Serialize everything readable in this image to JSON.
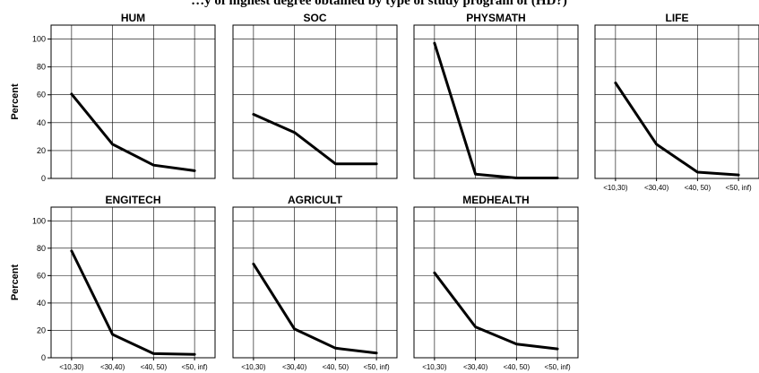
{
  "title": "…y of highest degree obtained by type of study program of (HD?)",
  "chart_data": {
    "type": "line",
    "ylabel": "Percent",
    "xlabel": "",
    "ylim": [
      0,
      110
    ],
    "yticks": [
      0,
      20,
      40,
      60,
      80,
      100
    ],
    "categories": [
      "<10,30)",
      "<30,40)",
      "<40, 50)",
      "<50, inf)"
    ],
    "grid": true,
    "line_color": "#000000",
    "panels": [
      {
        "title": "HUM",
        "values": [
          60.5,
          24.5,
          9.5,
          5.5
        ]
      },
      {
        "title": "SOC",
        "values": [
          46,
          33,
          10.5,
          10.5
        ]
      },
      {
        "title": "PHYSMATH",
        "values": [
          97,
          3,
          0.3,
          0.3
        ]
      },
      {
        "title": "LIFE",
        "values": [
          68.5,
          24.5,
          4.5,
          2.5
        ]
      },
      {
        "title": "ENGITECH",
        "values": [
          78,
          17,
          3,
          2.5
        ]
      },
      {
        "title": "AGRICULT",
        "values": [
          68.5,
          21,
          7,
          3.5
        ]
      },
      {
        "title": "MEDHEALTH",
        "values": [
          62,
          22.5,
          10,
          6.5
        ]
      }
    ]
  }
}
